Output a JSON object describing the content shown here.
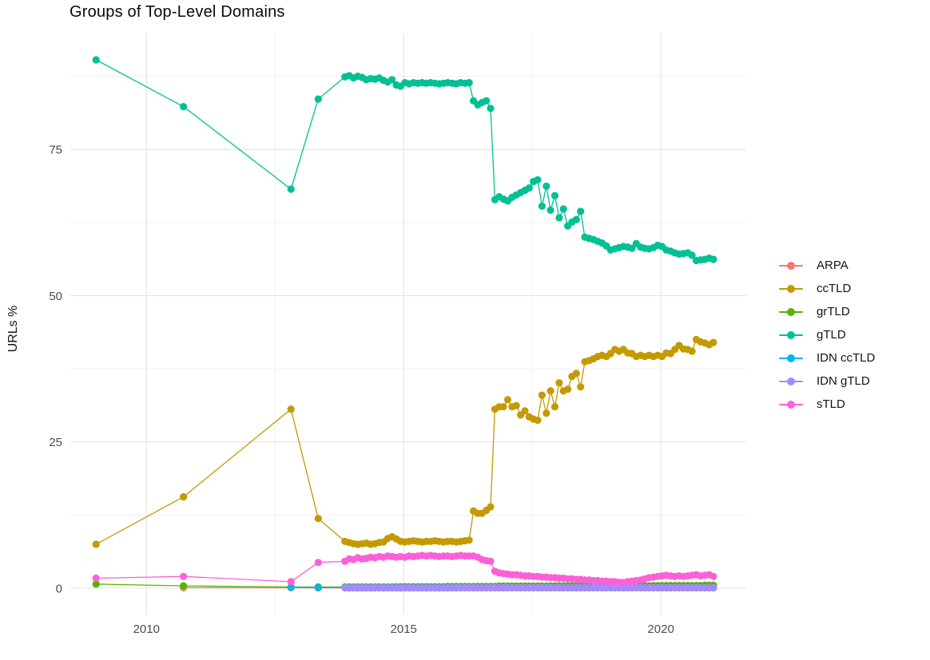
{
  "title": "Groups of Top-Level Domains",
  "axes": {
    "y_label": "URLs %",
    "x_tick_labels": [
      "2010",
      "2015",
      "2020"
    ],
    "y_tick_labels": [
      "0",
      "25",
      "50",
      "75"
    ]
  },
  "palette": {
    "grid_major": "#E4E4E4",
    "grid_minor": "#F0F0F0",
    "tick_text": "#4D4D4D",
    "title_text": "#0A0A0A"
  },
  "chart_data": {
    "type": "line",
    "title": "Groups of Top-Level Domains",
    "xlabel": "",
    "ylabel": "URLs %",
    "x_range": [
      2008.52,
      2021.66
    ],
    "y_range": [
      -4.5,
      94.8
    ],
    "x_ticks": [
      {
        "v": 2010,
        "label": "2010"
      },
      {
        "v": 2015,
        "label": "2015"
      },
      {
        "v": 2020,
        "label": "2020"
      }
    ],
    "y_ticks": [
      {
        "v": 0,
        "label": "0"
      },
      {
        "v": 25,
        "label": "25"
      },
      {
        "v": 50,
        "label": "50"
      },
      {
        "v": 75,
        "label": "75"
      }
    ],
    "x_minor": [
      2012.5,
      2017.5
    ],
    "y_minor": [
      12.5,
      37.5,
      62.5,
      87.5
    ],
    "grid": true,
    "legend_position": "right",
    "monthly_x": {
      "start": 2013.8583,
      "step": 0.0833,
      "count": 87
    },
    "series": [
      {
        "name": "ARPA",
        "color": "#F8766D",
        "early": [
          [
            2010.72,
            0.1
          ],
          [
            2012.81,
            0.07
          ],
          [
            2013.34,
            0.06
          ]
        ],
        "monthly_fill": [
          [
            0.05,
            87
          ]
        ]
      },
      {
        "name": "ccTLD",
        "color": "#C49A00",
        "early": [
          [
            2009.02,
            7.5
          ],
          [
            2010.72,
            15.6
          ],
          [
            2012.81,
            30.6
          ],
          [
            2013.34,
            11.9
          ]
        ],
        "monthly_values": [
          8.0,
          7.8,
          7.6,
          7.5,
          7.6,
          7.7,
          7.5,
          7.6,
          7.8,
          7.9,
          8.5,
          8.8,
          8.4,
          8.0,
          7.9,
          8.0,
          8.1,
          8.0,
          7.9,
          8.0,
          8.0,
          8.1,
          8.0,
          7.9,
          8.0,
          8.0,
          7.9,
          8.0,
          8.1,
          8.2,
          13.2,
          12.8,
          12.8,
          13.3,
          13.9,
          30.6,
          31.0,
          31.0,
          32.2,
          31.0,
          31.2,
          29.6,
          30.3,
          29.3,
          28.9,
          28.7,
          33.0,
          29.9,
          33.7,
          31.0,
          35.1,
          33.7,
          34.0,
          36.2,
          36.7,
          34.4,
          38.7,
          38.9,
          39.2,
          39.6,
          39.8,
          39.6,
          40.1,
          40.8,
          40.5,
          40.8,
          40.2,
          40.1,
          39.6,
          39.8,
          39.6,
          39.8,
          39.6,
          39.8,
          39.6,
          40.2,
          40.1,
          40.8,
          41.5,
          40.9,
          40.8,
          40.5,
          42.5,
          42.1,
          41.9,
          41.6,
          42.0
        ]
      },
      {
        "name": "grTLD",
        "color": "#53B400",
        "early": [
          [
            2009.02,
            0.7
          ],
          [
            2010.72,
            0.4
          ],
          [
            2012.81,
            0.2
          ],
          [
            2013.34,
            0.2
          ]
        ],
        "monthly_fill": [
          [
            0.2,
            12
          ],
          [
            0.25,
            12
          ],
          [
            0.3,
            12
          ],
          [
            0.35,
            12
          ],
          [
            0.4,
            24
          ],
          [
            0.45,
            12
          ],
          [
            0.5,
            3
          ]
        ]
      },
      {
        "name": "gTLD",
        "color": "#00C094",
        "early": [
          [
            2009.02,
            90.3
          ],
          [
            2010.72,
            82.3
          ],
          [
            2012.81,
            68.2
          ],
          [
            2013.34,
            83.6
          ]
        ],
        "monthly_values": [
          87.4,
          87.6,
          87.2,
          87.5,
          87.3,
          86.9,
          87.1,
          87.0,
          87.2,
          86.8,
          86.5,
          86.9,
          86.0,
          85.8,
          86.4,
          86.2,
          86.4,
          86.3,
          86.4,
          86.3,
          86.4,
          86.3,
          86.2,
          86.3,
          86.4,
          86.3,
          86.2,
          86.4,
          86.3,
          86.4,
          83.3,
          82.6,
          83.0,
          83.3,
          82.0,
          66.4,
          66.9,
          66.5,
          66.2,
          66.8,
          67.2,
          67.6,
          68.0,
          68.4,
          69.5,
          69.8,
          65.3,
          68.7,
          64.6,
          67.1,
          63.3,
          64.8,
          61.9,
          62.6,
          63.0,
          64.4,
          60.0,
          59.8,
          59.6,
          59.3,
          59.0,
          58.5,
          57.8,
          58.0,
          58.2,
          58.4,
          58.3,
          58.1,
          58.9,
          58.3,
          58.1,
          58.0,
          58.2,
          58.6,
          58.4,
          57.8,
          57.6,
          57.3,
          57.1,
          57.2,
          57.3,
          56.9,
          56.0,
          56.1,
          56.2,
          56.4,
          56.2
        ]
      },
      {
        "name": "IDN ccTLD",
        "color": "#00B6EB",
        "early": [
          [
            2012.81,
            0.15
          ],
          [
            2013.34,
            0.1
          ]
        ],
        "monthly_fill": [
          [
            0.1,
            87
          ]
        ]
      },
      {
        "name": "IDN gTLD",
        "color": "#A58AFF",
        "early": [],
        "monthly_fill": [
          [
            0.05,
            26
          ],
          [
            0.1,
            61
          ]
        ]
      },
      {
        "name": "sTLD",
        "color": "#FB61D7",
        "early": [
          [
            2009.02,
            1.7
          ],
          [
            2010.72,
            2.0
          ],
          [
            2012.81,
            1.1
          ],
          [
            2013.34,
            4.4
          ]
        ],
        "monthly_values": [
          4.6,
          5.0,
          4.9,
          5.2,
          5.0,
          5.1,
          5.3,
          5.2,
          5.4,
          5.3,
          5.5,
          5.4,
          5.3,
          5.4,
          5.3,
          5.5,
          5.4,
          5.5,
          5.6,
          5.5,
          5.6,
          5.5,
          5.4,
          5.5,
          5.5,
          5.4,
          5.5,
          5.6,
          5.5,
          5.5,
          5.5,
          5.3,
          4.9,
          4.7,
          4.6,
          2.9,
          2.6,
          2.5,
          2.4,
          2.3,
          2.3,
          2.2,
          2.1,
          2.1,
          2.0,
          2.0,
          1.9,
          1.9,
          1.8,
          1.8,
          1.7,
          1.7,
          1.6,
          1.6,
          1.5,
          1.5,
          1.4,
          1.4,
          1.3,
          1.3,
          1.2,
          1.2,
          1.1,
          1.1,
          1.0,
          1.0,
          1.1,
          1.2,
          1.3,
          1.4,
          1.6,
          1.8,
          1.9,
          2.0,
          2.1,
          2.2,
          2.1,
          2.0,
          2.1,
          2.0,
          2.1,
          2.2,
          2.3,
          2.1,
          2.2,
          2.3,
          2.0
        ]
      }
    ]
  }
}
